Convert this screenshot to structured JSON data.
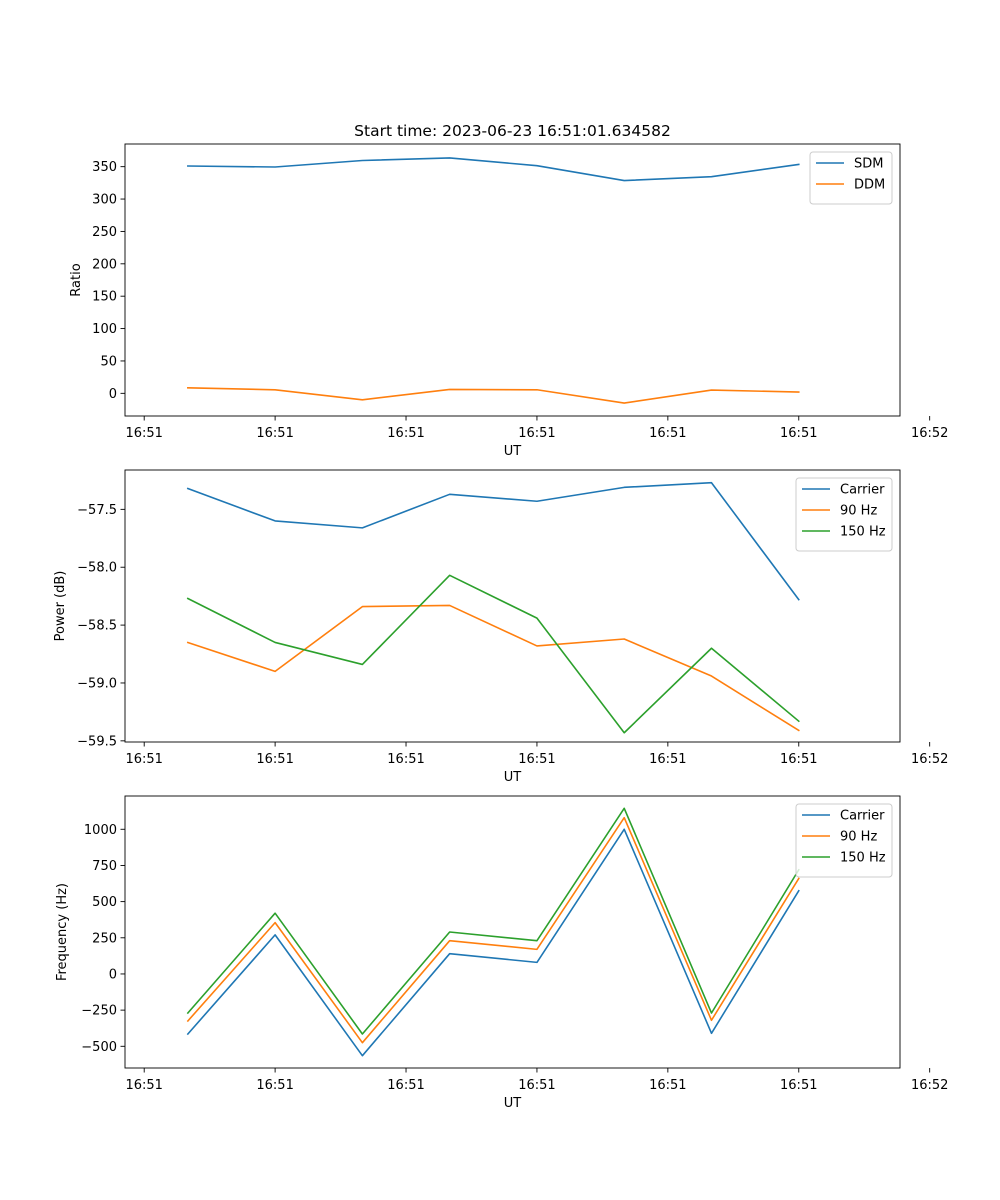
{
  "title": "Start time: 2023-06-23 16:51:01.634582",
  "chart_data": [
    {
      "type": "line",
      "xlabel": "UT",
      "ylabel": "Ratio",
      "x": [
        1,
        2,
        3,
        4,
        5,
        6,
        7,
        8
      ],
      "xlim": [
        0.28,
        9.16
      ],
      "xticks": [
        0.5,
        2,
        3.5,
        5,
        6.5,
        8,
        9.5
      ],
      "xtick_labels": [
        "16:51",
        "16:51",
        "16:51",
        "16:51",
        "16:51",
        "16:51",
        "16:52"
      ],
      "ylim": [
        -35,
        385
      ],
      "yticks": [
        0,
        50,
        100,
        150,
        200,
        250,
        300,
        350
      ],
      "legend": "top-right",
      "series": [
        {
          "name": "SDM",
          "color": "#1f77b4",
          "values": [
            351,
            349.5,
            359.5,
            363.5,
            351.5,
            328.5,
            334.5,
            353.5
          ]
        },
        {
          "name": "DDM",
          "color": "#ff7f0e",
          "values": [
            8.5,
            5.5,
            -10,
            6,
            5.5,
            -15,
            5,
            2
          ]
        }
      ]
    },
    {
      "type": "line",
      "xlabel": "UT",
      "ylabel": "Power (dB)",
      "x": [
        1,
        2,
        3,
        4,
        5,
        6,
        7,
        8
      ],
      "xlim": [
        0.28,
        9.16
      ],
      "xticks": [
        0.5,
        2,
        3.5,
        5,
        6.5,
        8,
        9.5
      ],
      "xtick_labels": [
        "16:51",
        "16:51",
        "16:51",
        "16:51",
        "16:51",
        "16:51",
        "16:52"
      ],
      "ylim": [
        -59.51,
        -57.16
      ],
      "yticks": [
        -59.5,
        -59.0,
        -58.5,
        -58.0,
        -57.5
      ],
      "ytick_labels": [
        "−59.5",
        "−59.0",
        "−58.5",
        "−58.0",
        "−57.5"
      ],
      "legend": "top-right",
      "series": [
        {
          "name": "Carrier",
          "color": "#1f77b4",
          "values": [
            -57.32,
            -57.6,
            -57.66,
            -57.37,
            -57.43,
            -57.31,
            -57.27,
            -58.28
          ]
        },
        {
          "name": "90 Hz",
          "color": "#ff7f0e",
          "values": [
            -58.65,
            -58.9,
            -58.34,
            -58.33,
            -58.68,
            -58.62,
            -58.94,
            -59.41
          ]
        },
        {
          "name": "150 Hz",
          "color": "#2ca02c",
          "values": [
            -58.27,
            -58.65,
            -58.84,
            -58.07,
            -58.44,
            -59.43,
            -58.7,
            -59.33
          ]
        }
      ]
    },
    {
      "type": "line",
      "xlabel": "UT",
      "ylabel": "Frequency (Hz)",
      "x": [
        1,
        2,
        3,
        4,
        5,
        6,
        7,
        8
      ],
      "xlim": [
        0.28,
        9.16
      ],
      "xticks": [
        0.5,
        2,
        3.5,
        5,
        6.5,
        8,
        9.5
      ],
      "xtick_labels": [
        "16:51",
        "16:51",
        "16:51",
        "16:51",
        "16:51",
        "16:51",
        "16:52"
      ],
      "ylim": [
        -650,
        1230
      ],
      "yticks": [
        -500,
        -250,
        0,
        250,
        500,
        750,
        1000
      ],
      "ytick_labels": [
        "−500",
        "−250",
        "0",
        "250",
        "500",
        "750",
        "1000"
      ],
      "legend": "top-right",
      "series": [
        {
          "name": "Carrier",
          "color": "#1f77b4",
          "values": [
            -415,
            270,
            -565,
            140,
            80,
            1000,
            -410,
            575
          ]
        },
        {
          "name": "90 Hz",
          "color": "#ff7f0e",
          "values": [
            -325,
            355,
            -475,
            230,
            170,
            1080,
            -320,
            660
          ]
        },
        {
          "name": "150 Hz",
          "color": "#2ca02c",
          "values": [
            -270,
            420,
            -415,
            290,
            230,
            1145,
            -270,
            720
          ]
        }
      ]
    }
  ]
}
